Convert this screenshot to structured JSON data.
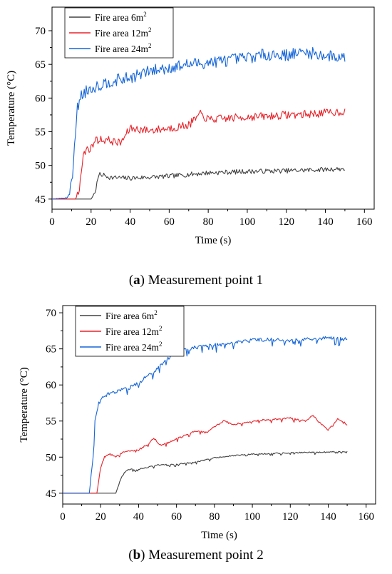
{
  "chart_data": [
    {
      "type": "line",
      "caption_letter": "a",
      "caption_text": "Measurement point 1",
      "xlabel": "Time (s)",
      "ylabel": "Temperature (°C)",
      "xlim": [
        0,
        165
      ],
      "ylim": [
        43.5,
        73.5
      ],
      "xticks": [
        0,
        20,
        40,
        60,
        80,
        100,
        120,
        140,
        160
      ],
      "yticks": [
        45,
        50,
        55,
        60,
        65,
        70
      ],
      "grid": false,
      "legend_position": "top-left",
      "noise": [
        0.35,
        0.6,
        0.9
      ],
      "seed": 7,
      "series": [
        {
          "name": "Fire area 6m",
          "name_sup": "2",
          "color": "#404040",
          "points": [
            [
              0,
              45
            ],
            [
              20,
              45
            ],
            [
              22,
              46
            ],
            [
              24,
              48.6
            ],
            [
              26,
              48.6
            ],
            [
              28,
              48.4
            ],
            [
              30,
              48.2
            ],
            [
              40,
              48.1
            ],
            [
              60,
              48.4
            ],
            [
              80,
              48.9
            ],
            [
              100,
              49.1
            ],
            [
              120,
              49.2
            ],
            [
              140,
              49.4
            ],
            [
              150,
              49.5
            ]
          ]
        },
        {
          "name": "Fire area 12m",
          "name_sup": "2",
          "color": "#e8232a",
          "points": [
            [
              0,
              45
            ],
            [
              12,
              45
            ],
            [
              14,
              46.5
            ],
            [
              16,
              51.5
            ],
            [
              18,
              52.5
            ],
            [
              20,
              52.5
            ],
            [
              22,
              53.8
            ],
            [
              28,
              53.8
            ],
            [
              35,
              53.3
            ],
            [
              40,
              55.5
            ],
            [
              50,
              55.2
            ],
            [
              60,
              55.5
            ],
            [
              70,
              56
            ],
            [
              76,
              57.6
            ],
            [
              80,
              56.8
            ],
            [
              90,
              57
            ],
            [
              100,
              57.2
            ],
            [
              110,
              57.3
            ],
            [
              120,
              57.5
            ],
            [
              130,
              57.6
            ],
            [
              140,
              57.8
            ],
            [
              150,
              58
            ]
          ]
        },
        {
          "name": "Fire area 24m",
          "name_sup": "2",
          "color": "#1565d8",
          "points": [
            [
              0,
              45
            ],
            [
              8,
              45.2
            ],
            [
              10,
              47
            ],
            [
              12,
              55
            ],
            [
              13,
              58.5
            ],
            [
              15,
              60.5
            ],
            [
              20,
              61.5
            ],
            [
              30,
              62.5
            ],
            [
              40,
              63
            ],
            [
              50,
              64
            ],
            [
              60,
              64.5
            ],
            [
              70,
              65
            ],
            [
              80,
              65.3
            ],
            [
              90,
              65.6
            ],
            [
              100,
              66
            ],
            [
              110,
              66.5
            ],
            [
              120,
              66.4
            ],
            [
              130,
              66.8
            ],
            [
              140,
              66.3
            ],
            [
              150,
              66
            ]
          ]
        }
      ]
    },
    {
      "type": "line",
      "caption_letter": "b",
      "caption_text": "Measurement point 2",
      "xlabel": "Time (s)",
      "ylabel": "Temperature (°C)",
      "xlim": [
        0,
        165
      ],
      "ylim": [
        43.5,
        71
      ],
      "xticks": [
        0,
        20,
        40,
        60,
        80,
        100,
        120,
        140,
        160
      ],
      "yticks": [
        45,
        50,
        55,
        60,
        65,
        70
      ],
      "grid": false,
      "legend_position": "top-left",
      "noise": [
        0.08,
        0.12,
        0.25
      ],
      "seed": 13,
      "series": [
        {
          "name": "Fire area 6m",
          "name_sup": "2",
          "color": "#404040",
          "points": [
            [
              0,
              45
            ],
            [
              28,
              45
            ],
            [
              30,
              46.5
            ],
            [
              32,
              47.8
            ],
            [
              35,
              48.3
            ],
            [
              40,
              48.3
            ],
            [
              45,
              48.6
            ],
            [
              50,
              48.9
            ],
            [
              60,
              49
            ],
            [
              70,
              49.3
            ],
            [
              80,
              49.9
            ],
            [
              90,
              50.2
            ],
            [
              100,
              50.4
            ],
            [
              120,
              50.6
            ],
            [
              140,
              50.7
            ],
            [
              150,
              50.8
            ]
          ]
        },
        {
          "name": "Fire area 12m",
          "name_sup": "2",
          "color": "#e8232a",
          "points": [
            [
              0,
              45
            ],
            [
              18,
              45
            ],
            [
              20,
              48.5
            ],
            [
              22,
              50
            ],
            [
              25,
              50.4
            ],
            [
              28,
              50
            ],
            [
              32,
              50.7
            ],
            [
              40,
              51
            ],
            [
              45,
              51.8
            ],
            [
              48,
              52.6
            ],
            [
              52,
              51.6
            ],
            [
              60,
              52.5
            ],
            [
              70,
              53.6
            ],
            [
              76,
              53.4
            ],
            [
              80,
              54.2
            ],
            [
              85,
              55
            ],
            [
              90,
              54.5
            ],
            [
              100,
              55
            ],
            [
              110,
              55.2
            ],
            [
              120,
              55.4
            ],
            [
              128,
              55
            ],
            [
              132,
              55.8
            ],
            [
              136,
              54.6
            ],
            [
              140,
              53.8
            ],
            [
              145,
              55.3
            ],
            [
              148,
              55
            ],
            [
              150,
              54.5
            ]
          ]
        },
        {
          "name": "Fire area 24m",
          "name_sup": "2",
          "color": "#1565d8",
          "points": [
            [
              0,
              45
            ],
            [
              14,
              45
            ],
            [
              16,
              50
            ],
            [
              17,
              55
            ],
            [
              19,
              57.5
            ],
            [
              22,
              58.5
            ],
            [
              30,
              59.3
            ],
            [
              35,
              59.6
            ],
            [
              40,
              60.3
            ],
            [
              45,
              61.3
            ],
            [
              50,
              62.3
            ],
            [
              55,
              63.5
            ],
            [
              60,
              65
            ],
            [
              65,
              64.8
            ],
            [
              70,
              65.2
            ],
            [
              80,
              65.5
            ],
            [
              90,
              65.8
            ],
            [
              100,
              66.2
            ],
            [
              110,
              66.3
            ],
            [
              120,
              66.2
            ],
            [
              130,
              66.4
            ],
            [
              140,
              66.5
            ],
            [
              150,
              66.3
            ]
          ]
        }
      ]
    }
  ]
}
